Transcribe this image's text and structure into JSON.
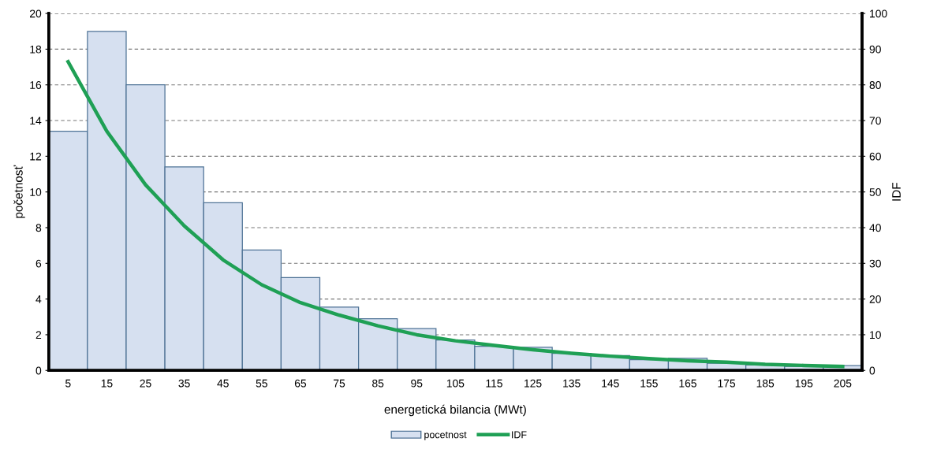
{
  "chart_data": {
    "type": "bar",
    "xlabel": "energetická bilancia (MWt)",
    "ylabel": "početnosť",
    "y2label": "IDF",
    "categories": [
      "5",
      "15",
      "25",
      "35",
      "45",
      "55",
      "65",
      "75",
      "85",
      "95",
      "105",
      "115",
      "125",
      "135",
      "145",
      "155",
      "165",
      "175",
      "185",
      "195",
      "205"
    ],
    "series": [
      {
        "name": "pocetnost",
        "color": "#d6e0f0",
        "values": [
          13.4,
          19,
          16,
          11.4,
          9.4,
          6.75,
          5.2,
          3.55,
          2.9,
          2.35,
          1.7,
          1.35,
          1.3,
          0.95,
          0.83,
          0.6,
          0.68,
          0.4,
          0.3,
          0.23,
          0.27
        ]
      },
      {
        "name": "IDF",
        "type": "line",
        "axis": "y2",
        "color": "#1fa055",
        "values": [
          86.5,
          67,
          52,
          40.5,
          31,
          24,
          19,
          15.5,
          12.5,
          10,
          8.3,
          7,
          5.8,
          4.8,
          4,
          3.3,
          2.7,
          2.3,
          1.7,
          1.4,
          1.1
        ]
      }
    ],
    "ylim": [
      0,
      20
    ],
    "yticks": [
      0,
      2,
      4,
      6,
      8,
      10,
      12,
      14,
      16,
      18,
      20
    ],
    "y2lim": [
      0,
      100
    ],
    "y2ticks": [
      0,
      10,
      20,
      30,
      40,
      50,
      60,
      70,
      80,
      90,
      100
    ],
    "grid": "y",
    "legend": "bottom",
    "marker": "none",
    "line_style": "solid"
  }
}
